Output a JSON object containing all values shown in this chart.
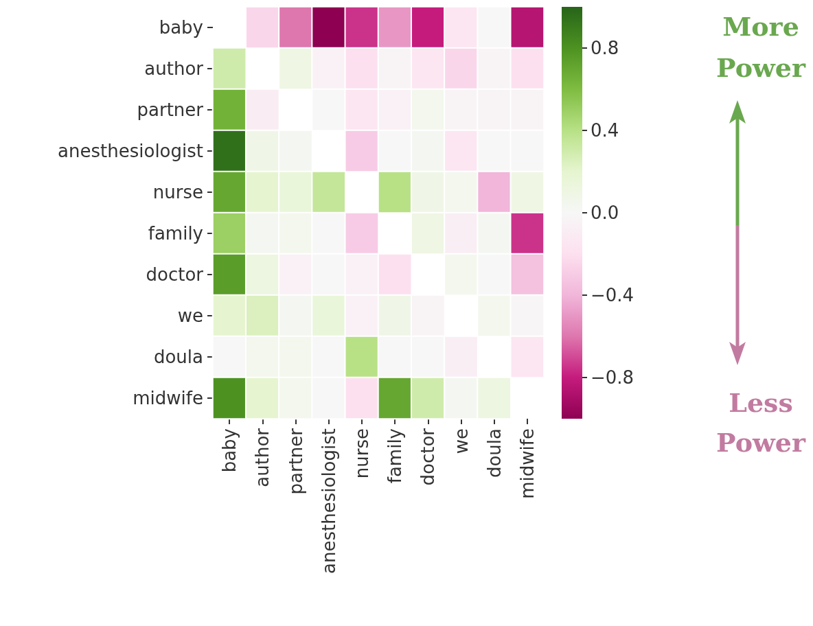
{
  "chart_data": {
    "type": "heatmap",
    "categories": [
      "baby",
      "author",
      "partner",
      "anesthesiologist",
      "nurse",
      "family",
      "doctor",
      "we",
      "doula",
      "midwife"
    ],
    "y_categories": [
      "baby",
      "author",
      "partner",
      "anesthesiologist",
      "nurse",
      "family",
      "doctor",
      "we",
      "doula",
      "midwife"
    ],
    "cells": [
      [
        null,
        -0.25,
        -0.6,
        -1.0,
        -0.75,
        -0.5,
        -0.8,
        -0.15,
        0,
        -0.85
      ],
      [
        0.3,
        null,
        0.1,
        -0.05,
        -0.2,
        -0.03,
        -0.15,
        -0.25,
        -0.03,
        -0.2
      ],
      [
        0.65,
        -0.1,
        null,
        0,
        -0.15,
        -0.05,
        0.05,
        -0.03,
        -0.03,
        -0.03
      ],
      [
        0.95,
        0.08,
        0.03,
        null,
        -0.3,
        0,
        0.03,
        -0.15,
        0,
        0
      ],
      [
        0.7,
        0.2,
        0.15,
        0.35,
        null,
        0.4,
        0.08,
        0.05,
        -0.4,
        0.1
      ],
      [
        0.5,
        0.03,
        0.05,
        0,
        -0.3,
        null,
        0.1,
        -0.08,
        0.03,
        -0.75
      ],
      [
        0.75,
        0.12,
        -0.05,
        0,
        -0.05,
        -0.2,
        null,
        0.05,
        0,
        -0.35
      ],
      [
        0.2,
        0.25,
        0.03,
        0.15,
        -0.05,
        0.08,
        -0.03,
        null,
        0.05,
        -0.02
      ],
      [
        0,
        0.05,
        0.05,
        0,
        0.4,
        0,
        0,
        -0.08,
        null,
        -0.15
      ],
      [
        0.8,
        0.2,
        0.05,
        0,
        -0.2,
        0.7,
        0.3,
        0.03,
        0.12,
        null
      ]
    ],
    "clim": [
      -1,
      1
    ],
    "cticks": [
      0.8,
      0.4,
      {
        "value": 0,
        "label": "0.0"
      },
      {
        "value": -0.4,
        "label": "−0.4"
      },
      {
        "value": -0.8,
        "label": "−0.8"
      }
    ],
    "annotations": [
      "More Power",
      "Less Power"
    ]
  }
}
